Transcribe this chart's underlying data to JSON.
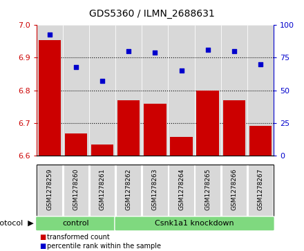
{
  "title": "GDS5360 / ILMN_2688631",
  "samples": [
    "GSM1278259",
    "GSM1278260",
    "GSM1278261",
    "GSM1278262",
    "GSM1278263",
    "GSM1278264",
    "GSM1278265",
    "GSM1278266",
    "GSM1278267"
  ],
  "bar_values": [
    6.955,
    6.667,
    6.635,
    6.77,
    6.758,
    6.657,
    6.8,
    6.77,
    6.692
  ],
  "bar_base": 6.6,
  "scatter_values": [
    93,
    68,
    57,
    80,
    79,
    65,
    81,
    80,
    70
  ],
  "bar_color": "#cc0000",
  "scatter_color": "#0000cc",
  "ylim": [
    6.6,
    7.0
  ],
  "ylim_right": [
    0,
    100
  ],
  "yticks_left": [
    6.6,
    6.7,
    6.8,
    6.9,
    7.0
  ],
  "yticks_right": [
    0,
    25,
    50,
    75,
    100
  ],
  "control_samples": 3,
  "knockdown_samples": 6,
  "control_label": "control",
  "knockdown_label": "Csnk1a1 knockdown",
  "protocol_label": "protocol",
  "legend_bar_label": "transformed count",
  "legend_scatter_label": "percentile rank within the sample",
  "group_color": "#7FD97F",
  "bar_width": 0.85,
  "plot_bg_color": "#d8d8d8",
  "col_bg_color": "#d8d8d8",
  "white": "#ffffff"
}
